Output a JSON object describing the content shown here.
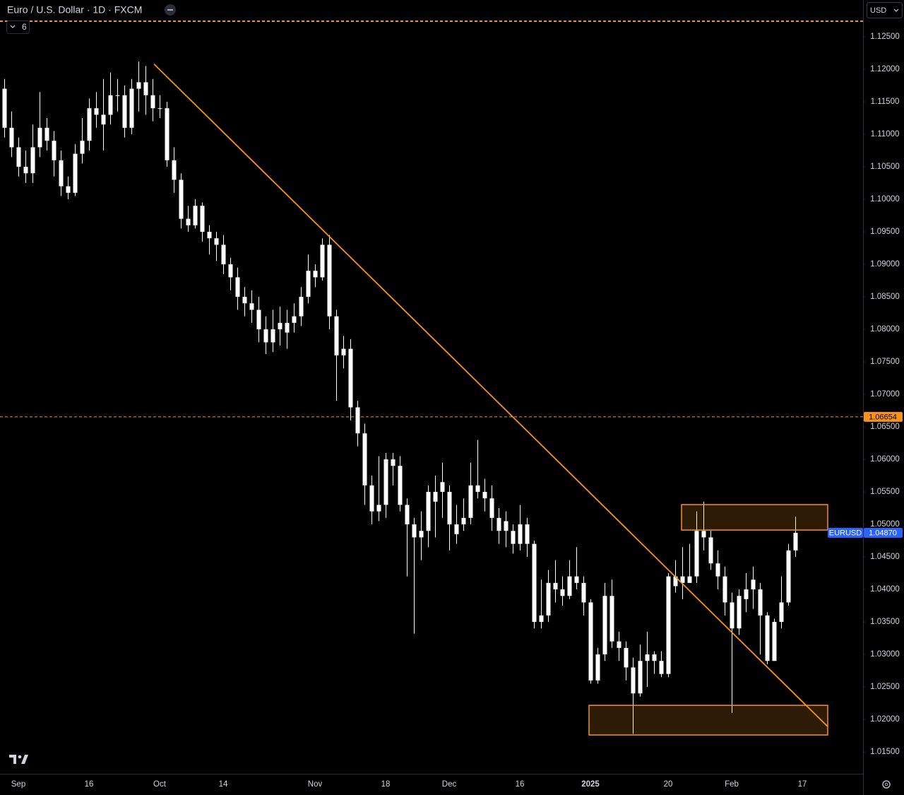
{
  "header": {
    "title": "Euro / U.S. Dollar · 1D · FXCM",
    "indicators": "6",
    "currency": "USD"
  },
  "chart_data": {
    "type": "candlestick",
    "categories": [
      null,
      null,
      "Sep",
      null,
      null,
      null,
      null,
      null,
      null,
      null,
      null,
      null,
      "16",
      null,
      null,
      null,
      null,
      null,
      null,
      null,
      null,
      null,
      "Oct",
      null,
      null,
      null,
      null,
      null,
      null,
      null,
      null,
      "14",
      null,
      null,
      null,
      null,
      null,
      null,
      null,
      null,
      null,
      null,
      null,
      null,
      "Nov",
      null,
      null,
      null,
      null,
      null,
      null,
      null,
      null,
      null,
      "18",
      null,
      null,
      null,
      null,
      null,
      null,
      null,
      null,
      "Dec",
      null,
      null,
      null,
      null,
      null,
      null,
      null,
      null,
      null,
      "16",
      null,
      null,
      null,
      null,
      null,
      null,
      null,
      null,
      null,
      "2025",
      null,
      null,
      null,
      null,
      null,
      null,
      null,
      null,
      null,
      null,
      "20",
      null,
      null,
      null,
      null,
      null,
      null,
      null,
      null,
      "Feb",
      null,
      null,
      null,
      null,
      null,
      null,
      null,
      null,
      null,
      "17",
      null,
      null,
      null,
      null,
      null,
      null,
      null,
      null
    ],
    "open": [
      1.117,
      1.111,
      1.108,
      1.105,
      1.104,
      1.108,
      1.111,
      1.109,
      1.106,
      1.102,
      1.101,
      1.107,
      1.109,
      1.114,
      1.1115,
      1.113,
      1.116,
      1.116,
      1.111,
      1.117,
      1.118,
      1.116,
      1.114,
      1.114,
      1.106,
      1.103,
      1.097,
      1.096,
      1.099,
      1.095,
      1.094,
      1.093,
      1.09,
      1.088,
      1.085,
      1.084,
      1.083,
      1.08,
      1.078,
      1.08,
      1.0795,
      1.081,
      1.082,
      1.085,
      1.089,
      1.088,
      1.093,
      1.082,
      1.076,
      1.077,
      1.068,
      1.064,
      1.056,
      1.052,
      1.053,
      1.06,
      1.059,
      1.053,
      1.05,
      1.048,
      1.049,
      1.0535,
      1.0565,
      1.055,
      1.0485,
      1.05,
      1.051,
      1.056,
      1.055,
      1.054,
      1.051,
      1.0505,
      1.049,
      1.047,
      1.05,
      1.047,
      1.035,
      1.036,
      1.041,
      1.04,
      1.039,
      1.042,
      1.041,
      1.038,
      1.026,
      1.03,
      1.039,
      1.032,
      1.031,
      1.028,
      1.024,
      1.029,
      1.03,
      1.029,
      1.027,
      1.0405,
      1.042,
      1.041,
      1.042,
      1.049,
      1.048,
      1.044,
      1.042,
      1.038,
      1.034,
      1.0385,
      1.0415,
      1.04,
      1.036,
      1.029,
      1.035,
      1.038,
      1.046,
      null,
      null,
      null,
      null,
      null,
      null,
      null,
      null,
      null
    ],
    "high": [
      1.1185,
      1.1135,
      1.1095,
      1.1075,
      1.1115,
      1.1165,
      1.1125,
      1.1105,
      1.1075,
      1.1035,
      1.1085,
      1.1125,
      1.1155,
      1.1165,
      1.1185,
      1.1195,
      1.1185,
      1.1175,
      1.1185,
      1.1212,
      1.1205,
      1.1185,
      1.116,
      1.115,
      1.108,
      1.104,
      1.099,
      1.1,
      1.0995,
      1.096,
      1.095,
      1.0945,
      1.091,
      1.0895,
      1.0865,
      1.086,
      1.085,
      1.082,
      1.083,
      1.0835,
      1.083,
      1.084,
      1.0865,
      1.0915,
      1.09,
      1.094,
      1.0945,
      1.083,
      1.079,
      1.0785,
      1.069,
      1.0655,
      1.0575,
      1.0605,
      1.061,
      1.061,
      1.0605,
      1.054,
      1.051,
      1.052,
      1.056,
      1.0575,
      1.0595,
      1.056,
      1.053,
      1.054,
      1.0595,
      1.063,
      1.057,
      1.056,
      1.0525,
      1.052,
      1.05,
      1.053,
      1.051,
      1.0475,
      1.0415,
      1.043,
      1.0445,
      1.042,
      1.0445,
      1.0465,
      1.042,
      1.0385,
      1.031,
      1.041,
      1.0415,
      1.0335,
      1.032,
      1.0295,
      1.0315,
      1.0335,
      1.0305,
      1.0305,
      1.0425,
      1.0445,
      1.0465,
      1.047,
      1.052,
      1.0535,
      1.049,
      1.046,
      1.0435,
      1.0395,
      1.04,
      1.0425,
      1.0435,
      1.041,
      1.0365,
      1.0355,
      1.042,
      1.047,
      1.0512,
      null,
      null,
      null,
      null,
      null,
      null,
      null,
      null,
      null
    ],
    "low": [
      1.1095,
      1.1065,
      1.1035,
      1.1025,
      1.1025,
      1.1065,
      1.1075,
      1.1035,
      1.1005,
      1.1,
      1.1005,
      1.1055,
      1.1075,
      1.111,
      1.1075,
      1.1115,
      1.1135,
      1.1095,
      1.11,
      1.1135,
      1.113,
      1.112,
      1.1125,
      1.105,
      1.101,
      1.0955,
      1.095,
      1.0955,
      1.0935,
      1.0915,
      1.0905,
      1.0885,
      1.086,
      1.083,
      1.082,
      1.081,
      1.078,
      1.0762,
      1.0765,
      1.0775,
      1.077,
      1.0795,
      1.0805,
      1.084,
      1.0865,
      1.0875,
      1.08,
      1.069,
      1.074,
      1.066,
      1.062,
      1.053,
      1.05,
      1.0505,
      1.051,
      1.056,
      1.052,
      1.042,
      1.0332,
      1.0445,
      1.0465,
      1.048,
      1.051,
      1.046,
      1.047,
      1.049,
      1.05,
      1.054,
      1.052,
      1.049,
      1.047,
      1.0465,
      1.0455,
      1.046,
      1.045,
      1.034,
      1.034,
      1.035,
      1.038,
      1.0375,
      1.0385,
      1.04,
      1.036,
      1.0255,
      1.0255,
      1.029,
      1.031,
      1.029,
      1.026,
      1.0178,
      1.0235,
      1.025,
      1.027,
      1.0265,
      1.0265,
      1.0395,
      1.0385,
      1.041,
      1.041,
      1.046,
      1.043,
      1.04,
      1.036,
      1.021,
      1.033,
      1.0365,
      1.037,
      1.03,
      1.0285,
      1.0295,
      1.034,
      1.0375,
      1.045,
      null,
      null,
      null,
      null,
      null,
      null,
      null,
      null,
      null
    ],
    "close": [
      1.111,
      1.108,
      1.105,
      1.104,
      1.108,
      1.111,
      1.109,
      1.106,
      1.102,
      1.101,
      1.107,
      1.109,
      1.114,
      1.113,
      1.113,
      1.116,
      1.116,
      1.111,
      1.117,
      1.118,
      1.116,
      1.114,
      1.114,
      1.106,
      1.103,
      1.097,
      1.096,
      1.099,
      1.095,
      1.094,
      1.093,
      1.09,
      1.088,
      1.085,
      1.084,
      1.083,
      1.08,
      1.078,
      1.08,
      1.081,
      1.081,
      1.082,
      1.085,
      1.089,
      1.088,
      1.093,
      1.082,
      1.076,
      1.077,
      1.068,
      1.064,
      1.056,
      1.052,
      1.053,
      1.06,
      1.059,
      1.053,
      1.05,
      1.048,
      1.049,
      1.055,
      1.055,
      1.055,
      1.05,
      1.05,
      1.051,
      1.056,
      1.055,
      1.054,
      1.051,
      1.049,
      1.049,
      1.047,
      1.05,
      1.047,
      1.035,
      1.036,
      1.041,
      1.04,
      1.039,
      1.042,
      1.041,
      1.038,
      1.026,
      1.03,
      1.039,
      1.032,
      1.031,
      1.028,
      1.024,
      1.029,
      1.03,
      1.029,
      1.027,
      1.042,
      1.042,
      1.041,
      1.042,
      1.049,
      1.048,
      1.044,
      1.042,
      1.038,
      1.034,
      1.039,
      1.04,
      1.04,
      1.036,
      1.029,
      1.035,
      1.038,
      1.046,
      1.0487,
      null,
      null,
      null,
      null,
      null,
      null,
      null,
      null,
      null
    ],
    "color": "#ffffff",
    "ylim": [
      1.01164,
      1.13065
    ],
    "yticks": [
      {
        "value": 1.015,
        "label": "1.01500"
      },
      {
        "value": 1.02,
        "label": "1.02000"
      },
      {
        "value": 1.025,
        "label": "1.02500"
      },
      {
        "value": 1.03,
        "label": "1.03000"
      },
      {
        "value": 1.035,
        "label": "1.03500"
      },
      {
        "value": 1.04,
        "label": "1.04000"
      },
      {
        "value": 1.045,
        "label": "1.04500"
      },
      {
        "value": 1.05,
        "label": "1.05000"
      },
      {
        "value": 1.055,
        "label": "1.05500"
      },
      {
        "value": 1.06,
        "label": "1.06000"
      },
      {
        "value": 1.065,
        "label": "1.06500"
      },
      {
        "value": 1.07,
        "label": "1.07000"
      },
      {
        "value": 1.075,
        "label": "1.07500"
      },
      {
        "value": 1.08,
        "label": "1.08000"
      },
      {
        "value": 1.085,
        "label": "1.08500"
      },
      {
        "value": 1.09,
        "label": "1.09000"
      },
      {
        "value": 1.095,
        "label": "1.09500"
      },
      {
        "value": 1.1,
        "label": "1.10000"
      },
      {
        "value": 1.105,
        "label": "1.10500"
      },
      {
        "value": 1.11,
        "label": "1.11000"
      },
      {
        "value": 1.115,
        "label": "1.11500"
      },
      {
        "value": 1.12,
        "label": "1.12000"
      },
      {
        "value": 1.125,
        "label": "1.12500"
      }
    ],
    "grid": false,
    "hlines": [
      {
        "value": 1.12739,
        "color": "#f7931a"
      },
      {
        "value": 1.06654,
        "label": "1.06654",
        "color": "#f7931a"
      }
    ],
    "last_price": {
      "symbol": "EURUSD",
      "value": 1.0487,
      "label": "1.04870",
      "color": "#2962ff"
    },
    "trendline": {
      "x": [
        21.2,
        116.6
      ],
      "y": [
        1.1208,
        1.0189
      ],
      "color": "#f7931a"
    },
    "zones": [
      {
        "x": [
          95.9,
          116.6
        ],
        "y": [
          1.04913,
          1.05304
        ],
        "color": "#f7931a"
      },
      {
        "x": [
          82.8,
          116.6
        ],
        "y": [
          1.01761,
          1.02217
        ],
        "color": "#f7931a"
      }
    ]
  }
}
